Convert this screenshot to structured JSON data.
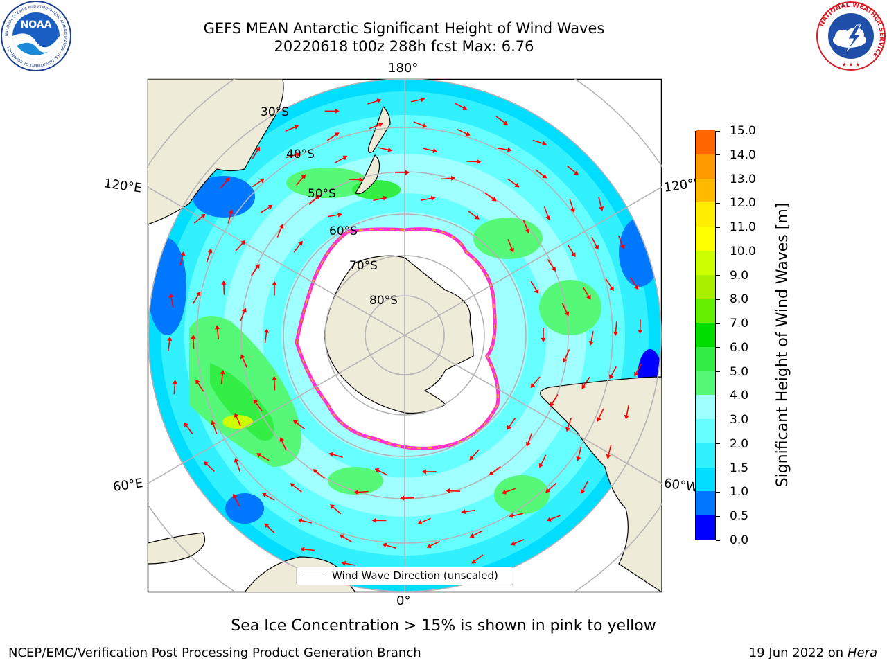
{
  "header": {
    "title_line1": "GEFS MEAN Antarctic Significant Height of Wind Waves",
    "title_line2": "20220618 t00z 288h fcst   Max: 6.76"
  },
  "logos": {
    "noaa_text": "NOAA",
    "noaa_ring_text": "NATIONAL OCEANIC AND ATMOSPHERIC ADMINISTRATION · U.S. DEPARTMENT OF COMMERCE",
    "nws_ring_text": "NATIONAL WEATHER SERVICE"
  },
  "map": {
    "projection": "south-polar-stereographic",
    "lon_labels": {
      "top": "180°",
      "bottom": "0°",
      "upper_left": "120°E",
      "upper_right": "120°W",
      "lower_left": "60°E",
      "lower_right": "60°W"
    },
    "lat_labels": [
      "30°S",
      "40°S",
      "50°S",
      "60°S",
      "70°S",
      "80°S"
    ],
    "legend": "Wind Wave Direction (unscaled)",
    "colors": {
      "land": "#efebd9",
      "sea_ice_edge": "#ff33cc",
      "arrows": "#ff0000",
      "graticule": "#b4b4b4"
    }
  },
  "colorbar": {
    "label": "Significant Height of Wind Waves [m]",
    "ticks": [
      "0.0",
      "0.5",
      "1.0",
      "1.5",
      "2.0",
      "3.0",
      "4.0",
      "5.0",
      "6.0",
      "7.0",
      "8.0",
      "9.0",
      "10.0",
      "11.0",
      "12.0",
      "13.0",
      "14.0",
      "15.0"
    ],
    "colors": [
      "#0000ff",
      "#0077ff",
      "#00ddff",
      "#33f0ff",
      "#66ffff",
      "#a0ffff",
      "#55f977",
      "#33ee44",
      "#00dd00",
      "#66ee00",
      "#aaee00",
      "#ccff00",
      "#ffff00",
      "#ffee00",
      "#ffbb00",
      "#ff9900",
      "#ff6600",
      "#ff3300",
      "#ff0000"
    ]
  },
  "chart_data": {
    "type": "heatmap",
    "title": "GEFS MEAN Antarctic Significant Height of Wind Waves",
    "subtitle": "20220618 t00z 288h fcst   Max: 6.76",
    "colorbar_label": "Significant Height of Wind Waves [m]",
    "value_range": [
      0.0,
      15.0
    ],
    "max_value": 6.76,
    "units": "m"
  },
  "footer": {
    "note": "Sea Ice Concentration > 15% is shown in pink to yellow",
    "credit": "NCEP/EMC/Verification Post Processing Product Generation Branch",
    "date": "19 Jun 2022 on",
    "machine": "Hera"
  }
}
